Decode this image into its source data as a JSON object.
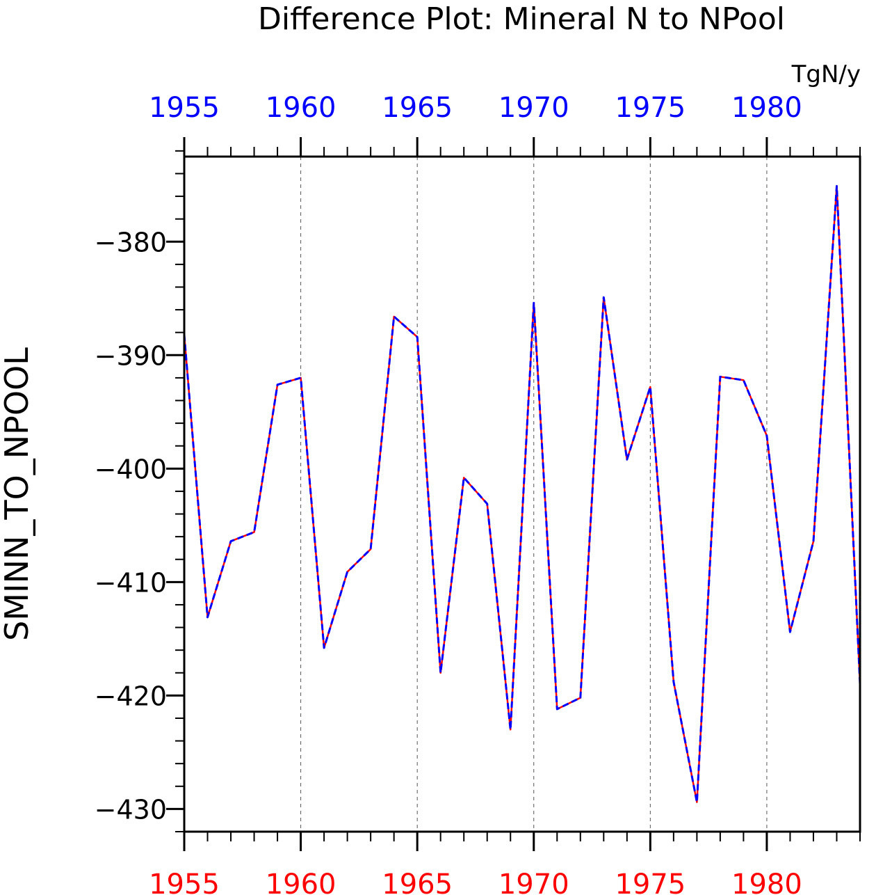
{
  "chart_data": {
    "type": "line",
    "title": "Difference Plot: Mineral N to NPool",
    "units": "TgN/y",
    "xlabel": "",
    "ylabel": "SMINN_TO_NPOOL",
    "xlim": [
      1955,
      1984
    ],
    "ylim": [
      -432,
      -372.5
    ],
    "x_ticks": [
      1955,
      1960,
      1965,
      1970,
      1975,
      1980
    ],
    "y_ticks": [
      -380,
      -390,
      -400,
      -410,
      -420,
      -430
    ],
    "y_tick_labels": [
      "−380",
      "−390",
      "−400",
      "−410",
      "−420",
      "−430"
    ],
    "x_tick_labels_top": [
      "1955",
      "1960",
      "1965",
      "1970",
      "1975",
      "1980"
    ],
    "x_tick_labels_bottom": [
      "1955",
      "1960",
      "1965",
      "1970",
      "1975",
      "1980"
    ],
    "top_axis_color": "#0000ff",
    "bottom_axis_color": "#ff0000",
    "vertical_gridlines": true,
    "x": [
      1955,
      1956,
      1957,
      1958,
      1959,
      1960,
      1961,
      1962,
      1963,
      1964,
      1965,
      1966,
      1967,
      1968,
      1969,
      1970,
      1971,
      1972,
      1973,
      1974,
      1975,
      1976,
      1977,
      1978,
      1979,
      1980,
      1981,
      1982,
      1983,
      1984
    ],
    "series": [
      {
        "color": "#ff0000",
        "style": "solid",
        "values": [
          -388.2,
          -413.1,
          -406.4,
          -405.6,
          -392.6,
          -392.0,
          -415.8,
          -409.1,
          -407.1,
          -386.6,
          -388.4,
          -418.0,
          -400.8,
          -403.1,
          -423.0,
          -385.4,
          -421.2,
          -420.2,
          -384.9,
          -399.2,
          -392.8,
          -418.8,
          -429.4,
          -391.9,
          -392.2,
          -397.1,
          -414.4,
          -406.4,
          -375.1,
          -419.0
        ]
      },
      {
        "color": "#0000ff",
        "style": "dashed",
        "values": [
          -388.2,
          -413.1,
          -406.4,
          -405.6,
          -392.6,
          -392.0,
          -415.8,
          -409.1,
          -407.1,
          -386.6,
          -388.4,
          -418.0,
          -400.8,
          -403.1,
          -423.0,
          -385.4,
          -421.2,
          -420.2,
          -384.9,
          -399.2,
          -392.8,
          -418.8,
          -429.4,
          -391.9,
          -392.2,
          -397.1,
          -414.4,
          -406.4,
          -375.1,
          -419.0
        ]
      }
    ]
  }
}
